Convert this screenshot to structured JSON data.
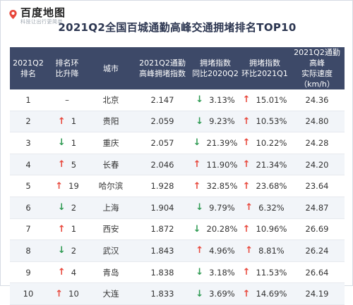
{
  "brand": {
    "name": "百度地图",
    "tagline": "科技让出行更简单",
    "accent": "#e8473b"
  },
  "title": "2021Q2全国百城通勤高峰交通拥堵排名TOP10",
  "columns": [
    [
      "2021Q2",
      "排名"
    ],
    [
      "排名环",
      "比升降"
    ],
    [
      "城市"
    ],
    [
      "2021Q2通勤",
      "高峰拥堵指数"
    ],
    [
      "拥堵指数",
      "同比2020Q2"
    ],
    [
      "拥堵指数",
      "环比2021Q1"
    ],
    [
      "2021Q2通勤高峰",
      "实际速度（km/h）"
    ]
  ],
  "colors": {
    "header_bg": "#3d4968",
    "up": "#e8473b",
    "down": "#2e9a52",
    "alt_row": "#f2f5f9"
  },
  "rows": [
    {
      "rank": "1",
      "change_dir": "none",
      "change": "–",
      "city": "北京",
      "index": "2.147",
      "yoy_dir": "down",
      "yoy": "3.13%",
      "qoq_dir": "up",
      "qoq": "15.01%",
      "speed": "24.36"
    },
    {
      "rank": "2",
      "change_dir": "up",
      "change": "1",
      "city": "贵阳",
      "index": "2.059",
      "yoy_dir": "down",
      "yoy": "9.23%",
      "qoq_dir": "up",
      "qoq": "10.53%",
      "speed": "24.80"
    },
    {
      "rank": "3",
      "change_dir": "down",
      "change": "1",
      "city": "重庆",
      "index": "2.057",
      "yoy_dir": "down",
      "yoy": "21.39%",
      "qoq_dir": "up",
      "qoq": "10.22%",
      "speed": "24.28"
    },
    {
      "rank": "4",
      "change_dir": "up",
      "change": "5",
      "city": "长春",
      "index": "2.046",
      "yoy_dir": "up",
      "yoy": "11.90%",
      "qoq_dir": "up",
      "qoq": "21.34%",
      "speed": "24.20"
    },
    {
      "rank": "5",
      "change_dir": "up",
      "change": "19",
      "city": "哈尔滨",
      "index": "1.928",
      "yoy_dir": "up",
      "yoy": "32.85%",
      "qoq_dir": "up",
      "qoq": "23.68%",
      "speed": "23.64"
    },
    {
      "rank": "6",
      "change_dir": "down",
      "change": "2",
      "city": "上海",
      "index": "1.904",
      "yoy_dir": "down",
      "yoy": "9.79%",
      "qoq_dir": "up",
      "qoq": "6.32%",
      "speed": "24.87"
    },
    {
      "rank": "7",
      "change_dir": "up",
      "change": "1",
      "city": "西安",
      "index": "1.872",
      "yoy_dir": "down",
      "yoy": "20.28%",
      "qoq_dir": "up",
      "qoq": "10.96%",
      "speed": "26.69"
    },
    {
      "rank": "8",
      "change_dir": "down",
      "change": "2",
      "city": "武汉",
      "index": "1.843",
      "yoy_dir": "up",
      "yoy": "4.96%",
      "qoq_dir": "up",
      "qoq": "8.81%",
      "speed": "26.24"
    },
    {
      "rank": "9",
      "change_dir": "up",
      "change": "4",
      "city": "青岛",
      "index": "1.838",
      "yoy_dir": "down",
      "yoy": "3.18%",
      "qoq_dir": "up",
      "qoq": "11.53%",
      "speed": "26.64"
    },
    {
      "rank": "10",
      "change_dir": "up",
      "change": "10",
      "city": "大连",
      "index": "1.833",
      "yoy_dir": "down",
      "yoy": "3.69%",
      "qoq_dir": "up",
      "qoq": "14.69%",
      "speed": "24.19"
    }
  ]
}
